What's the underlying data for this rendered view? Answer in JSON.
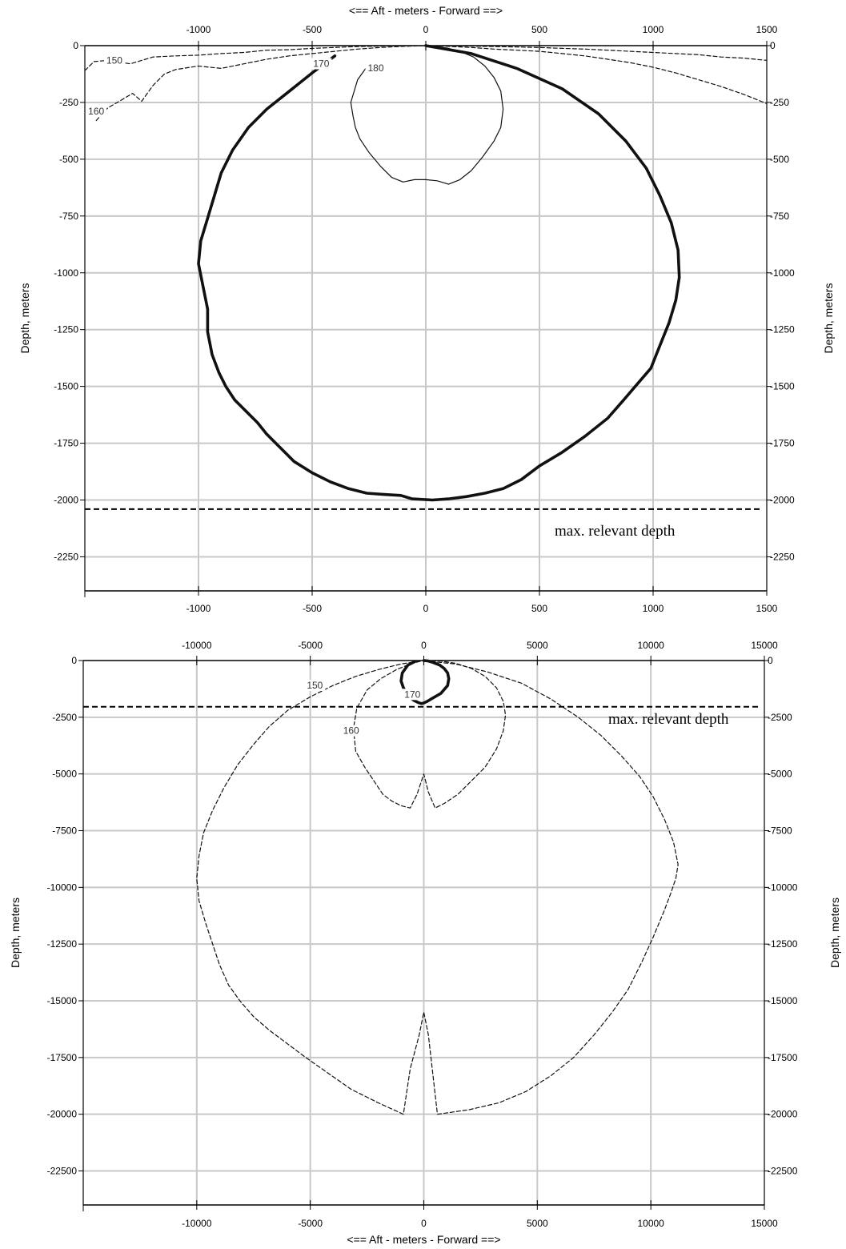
{
  "chart_data": [
    {
      "type": "line",
      "title": "",
      "top_xlabel": "<==   Aft   - meters -  Forward  ==>",
      "xlabel": "",
      "ylabel": "Depth, meters",
      "xlim": [
        -1500,
        1500
      ],
      "ylim": [
        -2400,
        0
      ],
      "xticks": [
        -1000,
        -500,
        0,
        500,
        1000,
        1500
      ],
      "yticks": [
        0,
        -250,
        -500,
        -750,
        -1000,
        -1250,
        -1500,
        -1750,
        -2000,
        -2250
      ],
      "grid": true,
      "reference_line": {
        "y": -2040,
        "label": "max. relevant depth"
      },
      "series": [
        {
          "name": "150",
          "style": "dashed",
          "label_at": [
            -1370,
            -75
          ],
          "x": [
            -1500,
            -1460,
            -1400,
            -1300,
            -1200,
            -1100,
            -1000,
            -900,
            -800,
            -700,
            -600,
            -500,
            -400,
            -300,
            -200,
            -100,
            0,
            100,
            200,
            300,
            400,
            500,
            600,
            700,
            800,
            900,
            1000,
            1100,
            1200,
            1300,
            1400,
            1500
          ],
          "y": [
            -110,
            -70,
            -65,
            -80,
            -50,
            -45,
            -42,
            -35,
            -30,
            -20,
            -18,
            -12,
            -8,
            -4,
            -2,
            -1,
            0,
            -1,
            -2,
            -4,
            -6,
            -8,
            -12,
            -15,
            -20,
            -25,
            -30,
            -35,
            -40,
            -50,
            -55,
            -65
          ]
        },
        {
          "name": "160",
          "style": "dashed",
          "label_at": [
            -1450,
            -300
          ],
          "x": [
            -1450,
            -1400,
            -1340,
            -1290,
            -1250,
            -1200,
            -1150,
            -1100,
            -1000,
            -900,
            -800,
            -700,
            -600,
            -500,
            -400,
            -300,
            -200,
            -100,
            0,
            100,
            200,
            300,
            400,
            500,
            600,
            700,
            800,
            900,
            1000,
            1100,
            1200,
            1300,
            1400,
            1500
          ],
          "y": [
            -330,
            -275,
            -240,
            -210,
            -245,
            -175,
            -125,
            -105,
            -90,
            -100,
            -80,
            -60,
            -45,
            -35,
            -25,
            -15,
            -8,
            -3,
            0,
            -3,
            -8,
            -15,
            -20,
            -25,
            -35,
            -45,
            -60,
            -75,
            -95,
            -120,
            -150,
            -180,
            -215,
            -255
          ]
        },
        {
          "name": "170",
          "style": "bold",
          "label_at": [
            -460,
            -90
          ],
          "x": [
            -400,
            -500,
            -600,
            -700,
            -780,
            -850,
            -900,
            -930,
            -960,
            -990,
            -1000,
            -980,
            -960,
            -960,
            -940,
            -910,
            -880,
            -840,
            -790,
            -740,
            -700,
            -660,
            -620,
            -580,
            -500,
            -420,
            -340,
            -260,
            -190,
            -110,
            -60,
            30,
            100,
            180,
            260,
            340,
            420,
            500,
            600,
            700,
            800,
            870,
            930,
            990,
            1030,
            1070,
            1100,
            1115,
            1110,
            1080,
            1030,
            970,
            880,
            760,
            600,
            400,
            200,
            0
          ],
          "y": [
            -45,
            -120,
            -200,
            -280,
            -360,
            -460,
            -560,
            -660,
            -760,
            -860,
            -960,
            -1060,
            -1160,
            -1260,
            -1360,
            -1440,
            -1500,
            -1560,
            -1610,
            -1660,
            -1710,
            -1750,
            -1790,
            -1830,
            -1880,
            -1920,
            -1950,
            -1970,
            -1975,
            -1980,
            -1995,
            -2000,
            -1995,
            -1985,
            -1970,
            -1950,
            -1910,
            -1850,
            -1790,
            -1720,
            -1640,
            -1560,
            -1490,
            -1420,
            -1320,
            -1220,
            -1120,
            -1020,
            -900,
            -780,
            -660,
            -540,
            -420,
            -300,
            -190,
            -100,
            -35,
            0
          ]
        },
        {
          "name": "180",
          "style": "solid",
          "label_at": [
            -220,
            -110
          ],
          "x": [
            -250,
            -300,
            -330,
            -320,
            -310,
            -290,
            -250,
            -200,
            -150,
            -100,
            -50,
            0,
            50,
            100,
            150,
            200,
            250,
            300,
            330,
            340,
            330,
            300,
            260,
            210,
            150,
            100,
            50,
            0
          ],
          "y": [
            -80,
            -150,
            -250,
            -310,
            -360,
            -410,
            -470,
            -530,
            -580,
            -600,
            -590,
            -590,
            -595,
            -610,
            -590,
            -550,
            -490,
            -420,
            -360,
            -280,
            -200,
            -140,
            -90,
            -50,
            -25,
            -12,
            -4,
            0
          ]
        }
      ]
    },
    {
      "type": "line",
      "title": "",
      "xlabel": "<==   Aft   - meters -  Forward  ==>",
      "ylabel": "Depth, meters",
      "xlim": [
        -15000,
        15000
      ],
      "ylim": [
        -24000,
        0
      ],
      "xticks": [
        -10000,
        -5000,
        0,
        5000,
        10000,
        15000
      ],
      "yticks": [
        0,
        -2500,
        -5000,
        -7500,
        -10000,
        -12500,
        -15000,
        -17500,
        -20000,
        -22500
      ],
      "grid": true,
      "reference_line": {
        "y": -2040,
        "label": "max. relevant depth"
      },
      "series": [
        {
          "name": "150",
          "style": "dashed",
          "label_at": [
            -4800,
            -1200
          ],
          "x": [
            -200,
            -1000,
            -2000,
            -3000,
            -4000,
            -5000,
            -6000,
            -6800,
            -7500,
            -8200,
            -8800,
            -9300,
            -9700,
            -9900,
            -10000,
            -9900,
            -9600,
            -9300,
            -9000,
            -8600,
            -8100,
            -7500,
            -6800,
            -6000,
            -5200,
            -4200,
            -3200,
            -2000,
            -900,
            -600,
            -200,
            0,
            200,
            600,
            2000,
            3300,
            4500,
            5600,
            6600,
            7500,
            8300,
            9000,
            9600,
            10100,
            10600,
            10900,
            11100,
            11200,
            11000,
            10600,
            10100,
            9500,
            8700,
            7800,
            6800,
            5600,
            4300,
            2800,
            1400,
            200
          ],
          "y": [
            -30,
            -150,
            -400,
            -700,
            -1100,
            -1600,
            -2200,
            -2900,
            -3700,
            -4600,
            -5600,
            -6600,
            -7600,
            -8600,
            -9600,
            -10600,
            -11600,
            -12500,
            -13400,
            -14300,
            -15000,
            -15700,
            -16300,
            -16900,
            -17500,
            -18200,
            -18900,
            -19500,
            -20000,
            -18000,
            -16500,
            -15500,
            -16500,
            -20000,
            -19800,
            -19500,
            -19000,
            -18300,
            -17500,
            -16500,
            -15500,
            -14500,
            -13300,
            -12200,
            -11000,
            -10200,
            -9600,
            -9000,
            -8000,
            -7000,
            -6000,
            -5100,
            -4200,
            -3300,
            -2500,
            -1700,
            -1000,
            -500,
            -150,
            -30
          ]
        },
        {
          "name": "160",
          "style": "dashed",
          "label_at": [
            -3200,
            -3200
          ],
          "x": [
            -150,
            -600,
            -1200,
            -1900,
            -2500,
            -2950,
            -3100,
            -3000,
            -2600,
            -2200,
            -1800,
            -1400,
            -1000,
            -600,
            -300,
            0,
            200,
            500,
            900,
            1500,
            2100,
            2700,
            3200,
            3500,
            3600,
            3500,
            3200,
            2700,
            2100,
            1400,
            800,
            200
          ],
          "y": [
            -30,
            -150,
            -400,
            -800,
            -1300,
            -2100,
            -3000,
            -4000,
            -4700,
            -5300,
            -5900,
            -6200,
            -6400,
            -6500,
            -5900,
            -5000,
            -5800,
            -6500,
            -6300,
            -5900,
            -5300,
            -4700,
            -3900,
            -3100,
            -2400,
            -1800,
            -1200,
            -700,
            -350,
            -120,
            -30,
            -5
          ]
        },
        {
          "name": "170",
          "style": "bold",
          "label_at": [
            -500,
            -1600
          ],
          "x": [
            -400,
            -700,
            -950,
            -1000,
            -900,
            -700,
            -450,
            -250,
            -100,
            0,
            150,
            400,
            750,
            1050,
            1100,
            1050,
            900,
            700,
            400,
            200,
            0
          ],
          "y": [
            -50,
            -200,
            -550,
            -900,
            -1200,
            -1550,
            -1750,
            -1850,
            -1900,
            -1870,
            -1800,
            -1650,
            -1450,
            -1100,
            -800,
            -550,
            -350,
            -200,
            -80,
            -20,
            0
          ]
        }
      ]
    }
  ]
}
